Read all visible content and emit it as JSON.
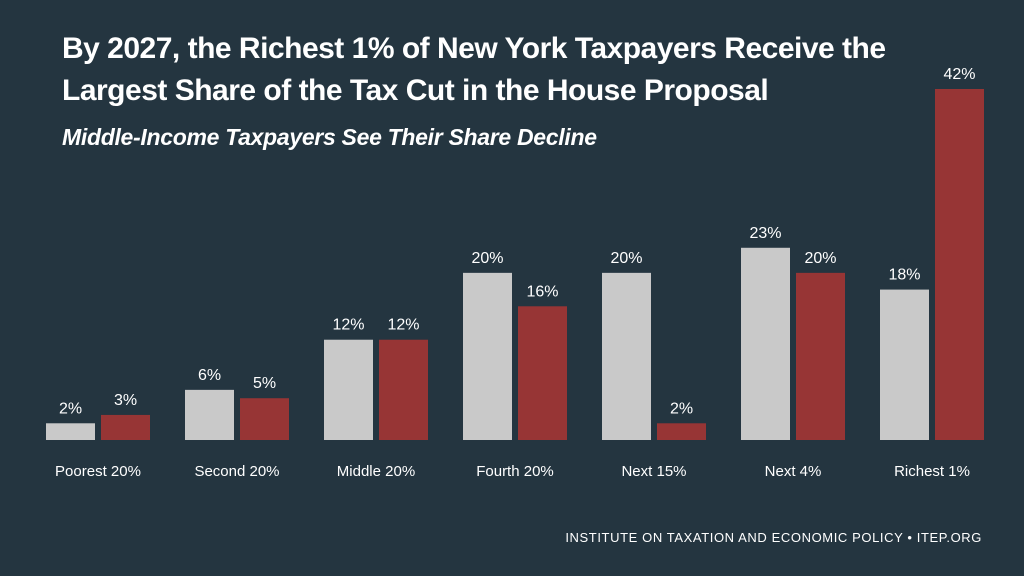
{
  "title": "By 2027, the Richest 1% of New York Taxpayers Receive the Largest Share of the Tax Cut in the House Proposal",
  "subtitle": "Middle-Income Taxpayers See Their Share Decline",
  "footer": "INSTITUTE ON TAXATION AND ECONOMIC POLICY • ITEP.ORG",
  "colors": {
    "background": "#243540",
    "series_1": "#c9c9c9",
    "series_2": "#973535",
    "text": "#ffffff"
  },
  "chart_data": {
    "type": "bar",
    "title": "By 2027, the Richest 1% of New York Taxpayers Receive the Largest Share of the Tax Cut in the House Proposal",
    "categories": [
      "Poorest 20%",
      "Second 20%",
      "Middle 20%",
      "Fourth 20%",
      "Next 15%",
      "Next 4%",
      "Richest 1%"
    ],
    "series": [
      {
        "name": "Share (gray)",
        "color": "#c9c9c9",
        "values": [
          2,
          6,
          12,
          20,
          20,
          23,
          18
        ]
      },
      {
        "name": "Share (red)",
        "color": "#973535",
        "values": [
          3,
          5,
          12,
          16,
          2,
          20,
          42
        ]
      }
    ],
    "value_suffix": "%",
    "ylim": [
      0,
      42
    ],
    "grid": false,
    "xlabel": "",
    "ylabel": ""
  }
}
